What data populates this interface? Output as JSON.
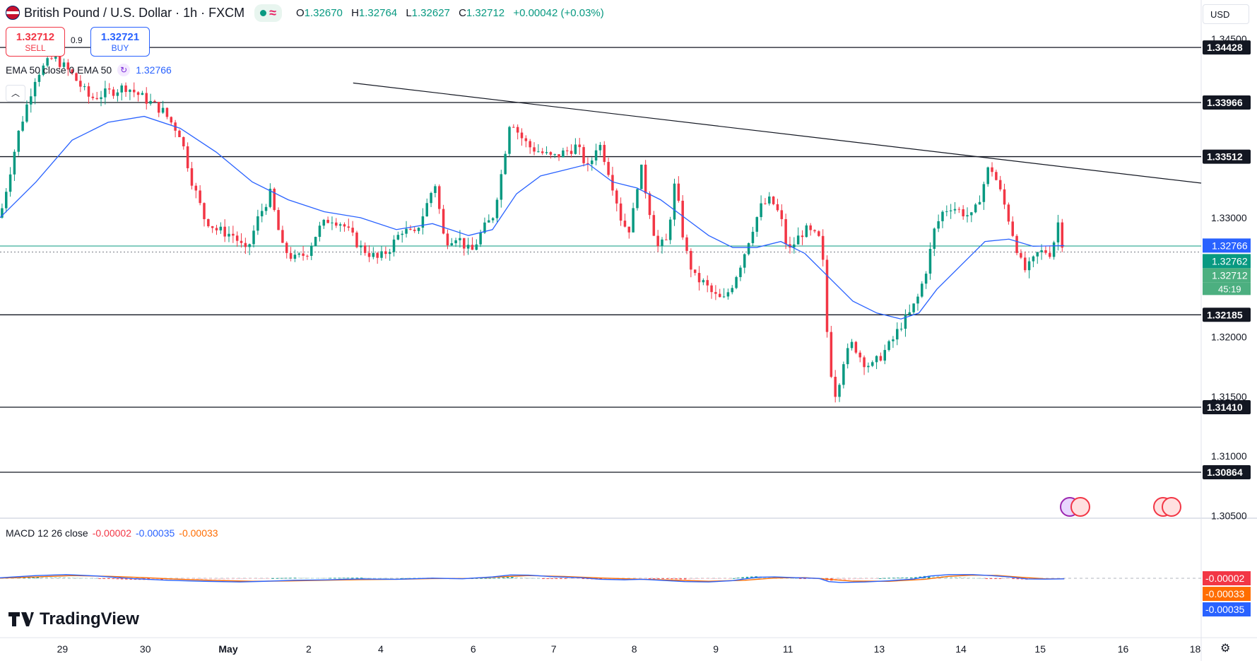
{
  "header": {
    "title": "British Pound / U.S. Dollar · 1h · FXCM",
    "ohlc": [
      {
        "k": "O",
        "v": "1.32670"
      },
      {
        "k": "H",
        "v": "1.32764"
      },
      {
        "k": "L",
        "v": "1.32627"
      },
      {
        "k": "C",
        "v": "1.32712"
      },
      {
        "k": "",
        "v": "+0.00042 (+0.03%)"
      }
    ]
  },
  "trade": {
    "sell_price": "1.32712",
    "sell_label": "SELL",
    "spread": "0.9",
    "buy_price": "1.32721",
    "buy_label": "BUY"
  },
  "ema_legend": {
    "label": "EMA 50 close 0 EMA 50",
    "value": "1.32766"
  },
  "currency": "USD",
  "macd_legend": {
    "label": "MACD 12 26 close",
    "hist": "-0.00002",
    "macd": "-0.00035",
    "signal": "-0.00033"
  },
  "logo": "TradingView",
  "countdown": "45:19",
  "colors": {
    "up": "#089981",
    "down": "#f23645",
    "ema": "#2962ff",
    "signal": "#ff6d00",
    "level": "#131722"
  },
  "chart_data": {
    "type": "candlestick",
    "y_ticks": [
      "1.34500",
      "1.34000",
      "1.33500",
      "1.33000",
      "1.32500",
      "1.32000",
      "1.31500",
      "1.31000",
      "1.30500"
    ],
    "x_ticks": [
      {
        "label": "29",
        "pos": 0.052
      },
      {
        "label": "30",
        "pos": 0.121
      },
      {
        "label": "May",
        "pos": 0.19
      },
      {
        "label": "2",
        "pos": 0.257
      },
      {
        "label": "4",
        "pos": 0.317
      },
      {
        "label": "6",
        "pos": 0.394
      },
      {
        "label": "7",
        "pos": 0.461
      },
      {
        "label": "8",
        "pos": 0.528
      },
      {
        "label": "9",
        "pos": 0.596
      },
      {
        "label": "11",
        "pos": 0.656
      },
      {
        "label": "13",
        "pos": 0.732
      },
      {
        "label": "14",
        "pos": 0.8
      },
      {
        "label": "15",
        "pos": 0.866
      },
      {
        "label": "16",
        "pos": 0.935
      },
      {
        "label": "18",
        "pos": 0.995
      }
    ],
    "levels": [
      "1.34428",
      "1.33966",
      "1.33512",
      "1.32185",
      "1.31410",
      "1.30864"
    ],
    "price_tags": {
      "ema": "1.32766",
      "high": "1.32762",
      "last": "1.32712"
    },
    "trendline": {
      "from": [
        0.294,
        1.3413
      ],
      "to": [
        1.0,
        1.3329
      ]
    },
    "current_line": 1.32762,
    "path": [
      [
        0.0,
        1.33
      ],
      [
        0.015,
        1.337
      ],
      [
        0.03,
        1.342
      ],
      [
        0.045,
        1.3435
      ],
      [
        0.06,
        1.342
      ],
      [
        0.075,
        1.34
      ],
      [
        0.09,
        1.3405
      ],
      [
        0.105,
        1.341
      ],
      [
        0.12,
        1.34
      ],
      [
        0.135,
        1.339
      ],
      [
        0.15,
        1.337
      ],
      [
        0.16,
        1.333
      ],
      [
        0.17,
        1.33
      ],
      [
        0.18,
        1.329
      ],
      [
        0.195,
        1.3285
      ],
      [
        0.205,
        1.327
      ],
      [
        0.215,
        1.33
      ],
      [
        0.225,
        1.332
      ],
      [
        0.235,
        1.3275
      ],
      [
        0.245,
        1.3265
      ],
      [
        0.255,
        1.327
      ],
      [
        0.265,
        1.329
      ],
      [
        0.275,
        1.33
      ],
      [
        0.285,
        1.3295
      ],
      [
        0.3,
        1.3275
      ],
      [
        0.315,
        1.3265
      ],
      [
        0.325,
        1.3275
      ],
      [
        0.335,
        1.329
      ],
      [
        0.345,
        1.3285
      ],
      [
        0.355,
        1.331
      ],
      [
        0.362,
        1.333
      ],
      [
        0.37,
        1.328
      ],
      [
        0.38,
        1.3285
      ],
      [
        0.392,
        1.327
      ],
      [
        0.402,
        1.329
      ],
      [
        0.41,
        1.33
      ],
      [
        0.418,
        1.334
      ],
      [
        0.425,
        1.3385
      ],
      [
        0.432,
        1.337
      ],
      [
        0.44,
        1.336
      ],
      [
        0.45,
        1.3355
      ],
      [
        0.46,
        1.335
      ],
      [
        0.47,
        1.3355
      ],
      [
        0.48,
        1.336
      ],
      [
        0.49,
        1.334
      ],
      [
        0.498,
        1.3365
      ],
      [
        0.505,
        1.3345
      ],
      [
        0.512,
        1.332
      ],
      [
        0.518,
        1.3295
      ],
      [
        0.525,
        1.329
      ],
      [
        0.533,
        1.3345
      ],
      [
        0.54,
        1.331
      ],
      [
        0.547,
        1.3275
      ],
      [
        0.555,
        1.328
      ],
      [
        0.562,
        1.333
      ],
      [
        0.57,
        1.3275
      ],
      [
        0.578,
        1.325
      ],
      [
        0.586,
        1.3245
      ],
      [
        0.594,
        1.3235
      ],
      [
        0.602,
        1.323
      ],
      [
        0.61,
        1.3245
      ],
      [
        0.618,
        1.3265
      ],
      [
        0.626,
        1.329
      ],
      [
        0.634,
        1.331
      ],
      [
        0.642,
        1.3315
      ],
      [
        0.65,
        1.33
      ],
      [
        0.656,
        1.327
      ],
      [
        0.662,
        1.328
      ],
      [
        0.67,
        1.329
      ],
      [
        0.678,
        1.3285
      ],
      [
        0.684,
        1.328
      ],
      [
        0.69,
        1.318
      ],
      [
        0.696,
        1.315
      ],
      [
        0.702,
        1.318
      ],
      [
        0.71,
        1.3195
      ],
      [
        0.718,
        1.318
      ],
      [
        0.726,
        1.3175
      ],
      [
        0.734,
        1.3185
      ],
      [
        0.742,
        1.3195
      ],
      [
        0.75,
        1.321
      ],
      [
        0.758,
        1.322
      ],
      [
        0.765,
        1.3235
      ],
      [
        0.772,
        1.326
      ],
      [
        0.778,
        1.329
      ],
      [
        0.785,
        1.3305
      ],
      [
        0.792,
        1.331
      ],
      [
        0.8,
        1.3305
      ],
      [
        0.81,
        1.33
      ],
      [
        0.818,
        1.3325
      ],
      [
        0.824,
        1.3345
      ],
      [
        0.83,
        1.333
      ],
      [
        0.838,
        1.3305
      ],
      [
        0.845,
        1.328
      ],
      [
        0.852,
        1.3255
      ],
      [
        0.858,
        1.326
      ],
      [
        0.864,
        1.327
      ],
      [
        0.87,
        1.3272
      ],
      [
        0.876,
        1.327
      ],
      [
        0.88,
        1.33
      ],
      [
        0.886,
        1.3271
      ]
    ],
    "ema": [
      [
        0.0,
        1.33
      ],
      [
        0.03,
        1.333
      ],
      [
        0.06,
        1.3365
      ],
      [
        0.09,
        1.338
      ],
      [
        0.12,
        1.3385
      ],
      [
        0.15,
        1.3375
      ],
      [
        0.18,
        1.3355
      ],
      [
        0.21,
        1.333
      ],
      [
        0.24,
        1.3315
      ],
      [
        0.27,
        1.3305
      ],
      [
        0.3,
        1.33
      ],
      [
        0.33,
        1.329
      ],
      [
        0.36,
        1.3295
      ],
      [
        0.39,
        1.3285
      ],
      [
        0.41,
        1.329
      ],
      [
        0.43,
        1.332
      ],
      [
        0.45,
        1.3335
      ],
      [
        0.47,
        1.334
      ],
      [
        0.49,
        1.3345
      ],
      [
        0.51,
        1.333
      ],
      [
        0.53,
        1.3325
      ],
      [
        0.55,
        1.3315
      ],
      [
        0.57,
        1.33
      ],
      [
        0.59,
        1.3285
      ],
      [
        0.61,
        1.3275
      ],
      [
        0.63,
        1.3275
      ],
      [
        0.65,
        1.328
      ],
      [
        0.67,
        1.327
      ],
      [
        0.69,
        1.325
      ],
      [
        0.71,
        1.323
      ],
      [
        0.73,
        1.322
      ],
      [
        0.75,
        1.3215
      ],
      [
        0.765,
        1.322
      ],
      [
        0.78,
        1.324
      ],
      [
        0.8,
        1.326
      ],
      [
        0.82,
        1.328
      ],
      [
        0.84,
        1.3282
      ],
      [
        0.86,
        1.3276
      ],
      [
        0.886,
        1.32766
      ]
    ],
    "macd": [
      [
        0.0,
        0.0003
      ],
      [
        0.03,
        0.0016
      ],
      [
        0.055,
        0.0022
      ],
      [
        0.08,
        0.0014
      ],
      [
        0.11,
        -0.0002
      ],
      [
        0.14,
        -0.0012
      ],
      [
        0.17,
        -0.0018
      ],
      [
        0.2,
        -0.0022
      ],
      [
        0.22,
        -0.0018
      ],
      [
        0.245,
        -0.0012
      ],
      [
        0.27,
        -0.001
      ],
      [
        0.3,
        -0.0004
      ],
      [
        0.33,
        -0.0006
      ],
      [
        0.36,
        0.0001
      ],
      [
        0.385,
        -0.0003
      ],
      [
        0.41,
        0.0008
      ],
      [
        0.425,
        0.002
      ],
      [
        0.44,
        0.0019
      ],
      [
        0.46,
        0.001
      ],
      [
        0.485,
        0.0003
      ],
      [
        0.5,
        -0.0006
      ],
      [
        0.52,
        -0.0009
      ],
      [
        0.535,
        -0.0006
      ],
      [
        0.55,
        -0.0012
      ],
      [
        0.57,
        -0.002
      ],
      [
        0.59,
        -0.0022
      ],
      [
        0.61,
        -0.0014
      ],
      [
        0.63,
        0.0006
      ],
      [
        0.645,
        0.0008
      ],
      [
        0.665,
        0.0003
      ],
      [
        0.682,
        -0.0001
      ],
      [
        0.69,
        -0.002
      ],
      [
        0.7,
        -0.0025
      ],
      [
        0.72,
        -0.0022
      ],
      [
        0.74,
        -0.0015
      ],
      [
        0.76,
        -0.0005
      ],
      [
        0.775,
        0.0014
      ],
      [
        0.79,
        0.0022
      ],
      [
        0.81,
        0.0022
      ],
      [
        0.825,
        0.0016
      ],
      [
        0.84,
        0.0008
      ],
      [
        0.855,
        -0.0004
      ],
      [
        0.87,
        -0.0005
      ],
      [
        0.886,
        -0.00035
      ]
    ],
    "signal": [
      [
        0.0,
        0.0001
      ],
      [
        0.03,
        0.0008
      ],
      [
        0.06,
        0.0016
      ],
      [
        0.09,
        0.0012
      ],
      [
        0.12,
        0.0004
      ],
      [
        0.15,
        -0.0006
      ],
      [
        0.18,
        -0.0013
      ],
      [
        0.21,
        -0.0018
      ],
      [
        0.24,
        -0.0016
      ],
      [
        0.27,
        -0.0012
      ],
      [
        0.3,
        -0.0008
      ],
      [
        0.33,
        -0.0006
      ],
      [
        0.36,
        -0.0002
      ],
      [
        0.39,
        -0.0001
      ],
      [
        0.42,
        0.001
      ],
      [
        0.44,
        0.0016
      ],
      [
        0.47,
        0.0011
      ],
      [
        0.5,
        0.0002
      ],
      [
        0.53,
        -0.0005
      ],
      [
        0.56,
        -0.0011
      ],
      [
        0.59,
        -0.0018
      ],
      [
        0.62,
        -0.0012
      ],
      [
        0.645,
        0.0002
      ],
      [
        0.67,
        0.0004
      ],
      [
        0.69,
        -0.0006
      ],
      [
        0.71,
        -0.0017
      ],
      [
        0.74,
        -0.0018
      ],
      [
        0.77,
        -0.0006
      ],
      [
        0.79,
        0.0012
      ],
      [
        0.81,
        0.0019
      ],
      [
        0.83,
        0.0017
      ],
      [
        0.85,
        0.0006
      ],
      [
        0.87,
        -0.0003
      ],
      [
        0.886,
        -0.00033
      ]
    ],
    "macd_ticks": [
      "0.00200",
      "-0.00200"
    ],
    "macd_tags": {
      "hist": "-0.00002",
      "signal": "-0.00033",
      "macd": "-0.00035"
    }
  }
}
